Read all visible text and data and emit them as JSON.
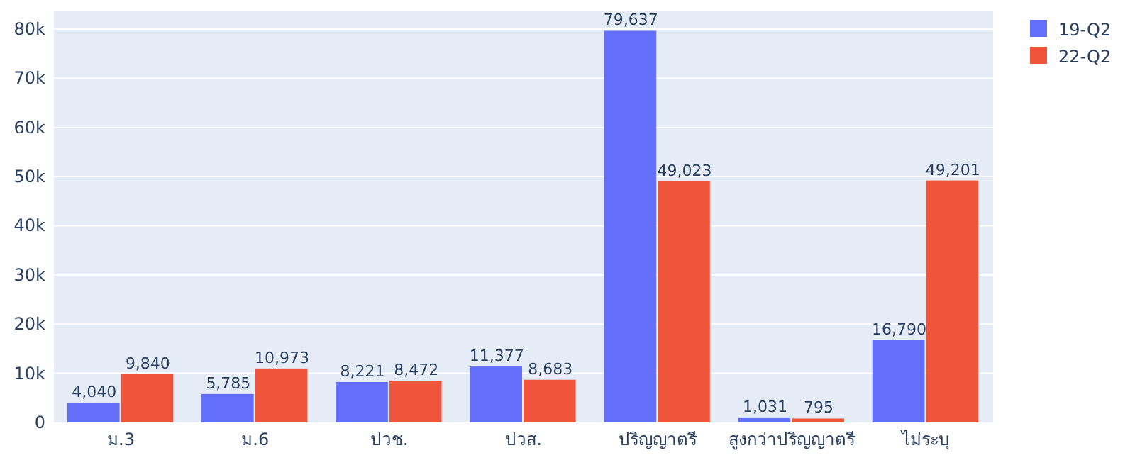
{
  "chart_data": {
    "type": "bar",
    "categories": [
      "ม.3",
      "ม.6",
      "ปวช.",
      "ปวส.",
      "ปริญญาตรี",
      "สูงกว่าปริญญาตรี",
      "ไม่ระบุ"
    ],
    "series": [
      {
        "name": "19-Q2",
        "color": "#636efa",
        "values": [
          4040,
          5785,
          8221,
          11377,
          79637,
          1031,
          16790
        ],
        "value_labels": [
          "4,040",
          "5,785",
          "8,221",
          "11,377",
          "79,637",
          "1,031",
          "16,790"
        ]
      },
      {
        "name": "22-Q2",
        "color": "#ef553b",
        "values": [
          9840,
          10973,
          8472,
          8683,
          49023,
          795,
          49201
        ],
        "value_labels": [
          "9,840",
          "10,973",
          "8,472",
          "8,683",
          "49,023",
          "795",
          "49,201"
        ]
      }
    ],
    "ylim": [
      0,
      83600
    ],
    "yticks": [
      0,
      {
        "value": 10000,
        "label": "10k"
      },
      {
        "value": 20000,
        "label": "20k"
      },
      {
        "value": 30000,
        "label": "30k"
      },
      {
        "value": 40000,
        "label": "40k"
      },
      {
        "value": 50000,
        "label": "50k"
      },
      {
        "value": 60000,
        "label": "60k"
      },
      {
        "value": 70000,
        "label": "70k"
      },
      {
        "value": 80000,
        "label": "80k"
      }
    ],
    "grid": "y",
    "legend": "top right"
  }
}
